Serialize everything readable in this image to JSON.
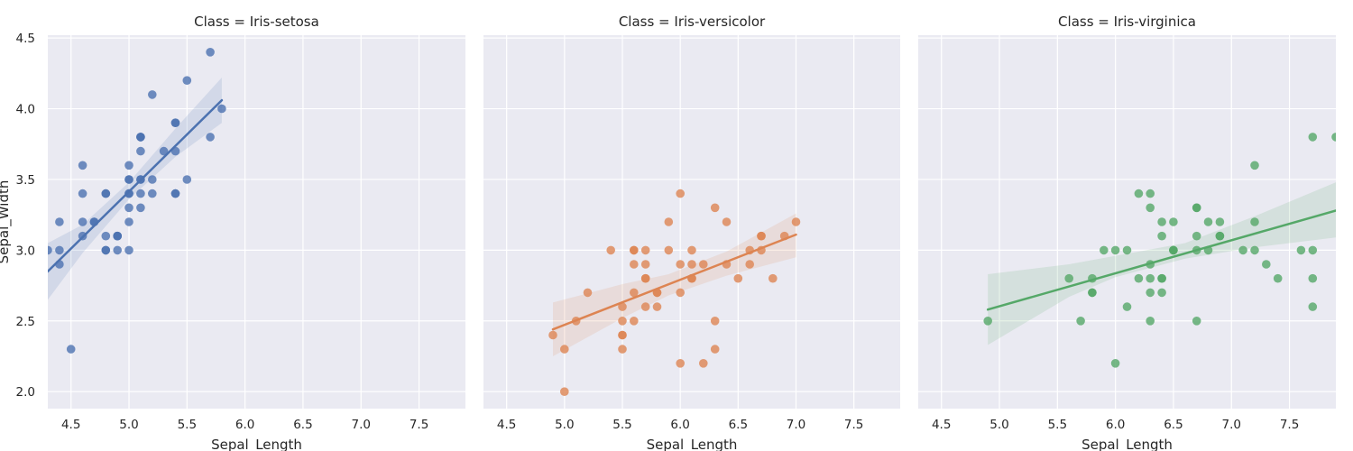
{
  "chart_data": {
    "type": "scatter",
    "xlabel": "Sepal_Length",
    "ylabel": "Sepal_Width",
    "xlim": [
      4.3,
      7.9
    ],
    "ylim": [
      1.88,
      4.52
    ],
    "x_ticks": [
      "4.5",
      "5.0",
      "5.5",
      "6.0",
      "6.5",
      "7.0",
      "7.5"
    ],
    "y_ticks": [
      "2.0",
      "2.5",
      "3.0",
      "3.5",
      "4.0",
      "4.5"
    ],
    "grid": true,
    "facets": [
      {
        "title": "Class = Iris-setosa",
        "color": "#4c72b0",
        "points": [
          [
            5.1,
            3.5
          ],
          [
            4.9,
            3.0
          ],
          [
            4.7,
            3.2
          ],
          [
            4.6,
            3.1
          ],
          [
            5.0,
            3.6
          ],
          [
            5.4,
            3.9
          ],
          [
            4.6,
            3.4
          ],
          [
            5.0,
            3.4
          ],
          [
            4.4,
            2.9
          ],
          [
            4.9,
            3.1
          ],
          [
            5.4,
            3.7
          ],
          [
            4.8,
            3.4
          ],
          [
            4.8,
            3.0
          ],
          [
            4.3,
            3.0
          ],
          [
            5.8,
            4.0
          ],
          [
            5.7,
            4.4
          ],
          [
            5.4,
            3.9
          ],
          [
            5.1,
            3.5
          ],
          [
            5.7,
            3.8
          ],
          [
            5.1,
            3.8
          ],
          [
            5.4,
            3.4
          ],
          [
            5.1,
            3.7
          ],
          [
            4.6,
            3.6
          ],
          [
            5.1,
            3.3
          ],
          [
            4.8,
            3.4
          ],
          [
            5.0,
            3.0
          ],
          [
            5.0,
            3.4
          ],
          [
            5.2,
            3.5
          ],
          [
            5.2,
            3.4
          ],
          [
            4.7,
            3.2
          ],
          [
            4.8,
            3.1
          ],
          [
            5.4,
            3.4
          ],
          [
            5.2,
            4.1
          ],
          [
            5.5,
            4.2
          ],
          [
            4.9,
            3.1
          ],
          [
            5.0,
            3.2
          ],
          [
            5.5,
            3.5
          ],
          [
            4.9,
            3.1
          ],
          [
            4.4,
            3.0
          ],
          [
            5.1,
            3.4
          ],
          [
            5.0,
            3.5
          ],
          [
            4.5,
            2.3
          ],
          [
            4.4,
            3.2
          ],
          [
            5.0,
            3.5
          ],
          [
            5.1,
            3.8
          ],
          [
            4.8,
            3.0
          ],
          [
            5.1,
            3.8
          ],
          [
            4.6,
            3.2
          ],
          [
            5.3,
            3.7
          ],
          [
            5.0,
            3.3
          ]
        ],
        "fit": {
          "x": [
            4.3,
            5.8
          ],
          "y": [
            2.85,
            4.06
          ]
        },
        "ci_band": {
          "x": [
            4.3,
            4.6,
            5.0,
            5.4,
            5.8
          ],
          "lower": [
            2.65,
            2.98,
            3.36,
            3.66,
            3.9
          ],
          "upper": [
            3.05,
            3.18,
            3.48,
            3.86,
            4.22
          ]
        }
      },
      {
        "title": "Class = Iris-versicolor",
        "color": "#dd8452",
        "points": [
          [
            7.0,
            3.2
          ],
          [
            6.4,
            3.2
          ],
          [
            6.9,
            3.1
          ],
          [
            5.5,
            2.3
          ],
          [
            6.5,
            2.8
          ],
          [
            5.7,
            2.8
          ],
          [
            6.3,
            3.3
          ],
          [
            4.9,
            2.4
          ],
          [
            6.6,
            2.9
          ],
          [
            5.2,
            2.7
          ],
          [
            5.0,
            2.0
          ],
          [
            5.9,
            3.0
          ],
          [
            6.0,
            2.2
          ],
          [
            6.1,
            2.9
          ],
          [
            5.6,
            2.9
          ],
          [
            6.7,
            3.1
          ],
          [
            5.6,
            3.0
          ],
          [
            5.8,
            2.7
          ],
          [
            6.2,
            2.2
          ],
          [
            5.6,
            2.5
          ],
          [
            5.9,
            3.2
          ],
          [
            6.1,
            2.8
          ],
          [
            6.3,
            2.5
          ],
          [
            6.1,
            2.8
          ],
          [
            6.4,
            2.9
          ],
          [
            6.6,
            3.0
          ],
          [
            6.8,
            2.8
          ],
          [
            6.7,
            3.0
          ],
          [
            6.0,
            2.9
          ],
          [
            5.7,
            2.6
          ],
          [
            5.5,
            2.4
          ],
          [
            5.5,
            2.4
          ],
          [
            5.8,
            2.7
          ],
          [
            6.0,
            2.7
          ],
          [
            5.4,
            3.0
          ],
          [
            6.0,
            3.4
          ],
          [
            6.7,
            3.1
          ],
          [
            6.3,
            2.3
          ],
          [
            5.6,
            3.0
          ],
          [
            5.5,
            2.5
          ],
          [
            5.5,
            2.6
          ],
          [
            6.1,
            3.0
          ],
          [
            5.8,
            2.6
          ],
          [
            5.0,
            2.3
          ],
          [
            5.6,
            2.7
          ],
          [
            5.7,
            3.0
          ],
          [
            5.7,
            2.9
          ],
          [
            6.2,
            2.9
          ],
          [
            5.1,
            2.5
          ],
          [
            5.7,
            2.8
          ]
        ],
        "fit": {
          "x": [
            4.9,
            7.0
          ],
          "y": [
            2.44,
            3.11
          ]
        },
        "ci_band": {
          "x": [
            4.9,
            5.5,
            5.9,
            6.4,
            7.0
          ],
          "lower": [
            2.25,
            2.52,
            2.68,
            2.82,
            2.95
          ],
          "upper": [
            2.63,
            2.76,
            2.83,
            2.99,
            3.26
          ]
        }
      },
      {
        "title": "Class = Iris-virginica",
        "color": "#55a868",
        "points": [
          [
            6.3,
            3.3
          ],
          [
            5.8,
            2.7
          ],
          [
            7.1,
            3.0
          ],
          [
            6.3,
            2.9
          ],
          [
            6.5,
            3.0
          ],
          [
            7.6,
            3.0
          ],
          [
            4.9,
            2.5
          ],
          [
            7.3,
            2.9
          ],
          [
            6.7,
            2.5
          ],
          [
            7.2,
            3.6
          ],
          [
            6.5,
            3.2
          ],
          [
            6.4,
            2.7
          ],
          [
            6.8,
            3.0
          ],
          [
            5.7,
            2.5
          ],
          [
            5.8,
            2.8
          ],
          [
            6.4,
            3.2
          ],
          [
            6.5,
            3.0
          ],
          [
            7.7,
            3.8
          ],
          [
            7.7,
            2.6
          ],
          [
            6.0,
            2.2
          ],
          [
            6.9,
            3.2
          ],
          [
            5.6,
            2.8
          ],
          [
            7.7,
            2.8
          ],
          [
            6.3,
            2.7
          ],
          [
            6.7,
            3.3
          ],
          [
            7.2,
            3.2
          ],
          [
            6.2,
            2.8
          ],
          [
            6.1,
            3.0
          ],
          [
            6.4,
            2.8
          ],
          [
            7.2,
            3.0
          ],
          [
            7.4,
            2.8
          ],
          [
            7.9,
            3.8
          ],
          [
            6.4,
            2.8
          ],
          [
            6.3,
            2.8
          ],
          [
            6.1,
            2.6
          ],
          [
            7.7,
            3.0
          ],
          [
            6.3,
            3.4
          ],
          [
            6.4,
            3.1
          ],
          [
            6.0,
            3.0
          ],
          [
            6.9,
            3.1
          ],
          [
            6.7,
            3.1
          ],
          [
            6.9,
            3.1
          ],
          [
            5.8,
            2.7
          ],
          [
            6.8,
            3.2
          ],
          [
            6.7,
            3.3
          ],
          [
            6.7,
            3.0
          ],
          [
            6.3,
            2.5
          ],
          [
            6.5,
            3.0
          ],
          [
            6.2,
            3.4
          ],
          [
            5.9,
            3.0
          ]
        ],
        "fit": {
          "x": [
            4.9,
            7.9
          ],
          "y": [
            2.58,
            3.28
          ]
        },
        "ci_band": {
          "x": [
            4.9,
            5.6,
            6.0,
            6.6,
            7.2,
            7.9
          ],
          "lower": [
            2.33,
            2.67,
            2.81,
            2.94,
            3.02,
            3.09
          ],
          "upper": [
            2.83,
            2.9,
            2.96,
            3.05,
            3.24,
            3.48
          ]
        }
      }
    ]
  }
}
